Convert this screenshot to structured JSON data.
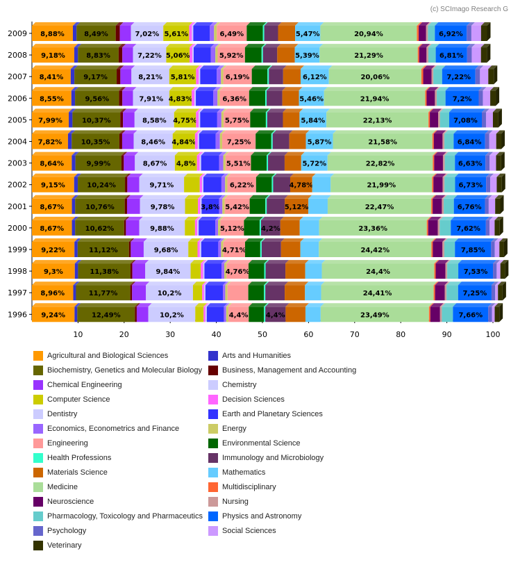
{
  "credit": "(c) SCImago Research G",
  "colors": {
    "Agricultural and Biological Sciences": "#ff9900",
    "Arts and Humanities": "#3333cc",
    "Biochemistry, Genetics and Molecular Biology": "#666600",
    "Business, Management and Accounting": "#660000",
    "Chemical Engineering": "#9933ff",
    "Chemistry": "#ccccff",
    "Computer Science": "#cccc00",
    "Decision Sciences": "#ff66ff",
    "Dentistry": "#ccccff",
    "Earth and Planetary Sciences": "#3333ff",
    "Economics, Econometrics and Finance": "#9966ff",
    "Energy": "#cccc66",
    "Engineering": "#ff9999",
    "Environmental Science": "#006600",
    "Health Professions": "#33ffcc",
    "Immunology and Microbiology": "#663366",
    "Materials Science": "#cc6600",
    "Mathematics": "#66ccff",
    "Medicine": "#aadd99",
    "Multidisciplinary": "#ff6633",
    "Neuroscience": "#660066",
    "Nursing": "#cc9999",
    "Pharmacology, Toxicology and Pharmaceutics": "#66cccc",
    "Physics and Astronomy": "#0066ff",
    "Psychology": "#6666cc",
    "Social Sciences": "#cc99ff",
    "Veterinary": "#333300"
  },
  "legend": [
    "Agricultural and Biological Sciences",
    "Arts and Humanities",
    "Biochemistry, Genetics and Molecular Biology",
    "Business, Management and Accounting",
    "Chemical Engineering",
    "Chemistry",
    "Computer Science",
    "Decision Sciences",
    "Dentistry",
    "Earth and Planetary Sciences",
    "Economics, Econometrics and Finance",
    "Energy",
    "Engineering",
    "Environmental Science",
    "Health Professions",
    "Immunology and Microbiology",
    "Materials Science",
    "Mathematics",
    "Medicine",
    "Multidisciplinary",
    "Neuroscience",
    "Nursing",
    "Pharmacology, Toxicology and Pharmaceutics",
    "Physics and Astronomy",
    "Psychology",
    "Social Sciences",
    "Veterinary"
  ],
  "chart_data": {
    "type": "bar",
    "orientation": "horizontal",
    "stacked": true,
    "xlim": [
      0,
      100
    ],
    "xticks": [
      10,
      20,
      30,
      40,
      50,
      60,
      70,
      80,
      90,
      100
    ],
    "grid": false,
    "legend_position": "bottom",
    "categories": [
      "2009",
      "2008",
      "2007",
      "2006",
      "2005",
      "2004",
      "2003",
      "2002",
      "2001",
      "2000",
      "1999",
      "1998",
      "1997",
      "1996"
    ],
    "series": [
      {
        "name": "Agricultural and Biological Sciences",
        "values": [
          8.88,
          9.18,
          8.41,
          8.55,
          7.99,
          7.82,
          8.64,
          9.15,
          8.67,
          8.67,
          9.22,
          9.3,
          8.96,
          9.24
        ],
        "labels": [
          "8,88%",
          "9,18%",
          "8,41%",
          "8,55%",
          "7,99%",
          "7,82%",
          "8,64%",
          "9,15%",
          "8,67%",
          "8,67%",
          "9,22%",
          "9,3%",
          "8,96%",
          "9,24%"
        ]
      },
      {
        "name": "Arts and Humanities",
        "values": [
          0.8,
          0.8,
          0.8,
          0.8,
          0.8,
          0.8,
          0.8,
          0.8,
          0.7,
          0.7,
          0.7,
          0.7,
          0.6,
          0.6
        ]
      },
      {
        "name": "Biochemistry, Genetics and Molecular Biology",
        "values": [
          8.49,
          8.83,
          9.17,
          9.56,
          10.37,
          10.35,
          9.99,
          10.24,
          10.76,
          10.62,
          11.12,
          11.38,
          11.77,
          12.49
        ],
        "labels": [
          "8,49%",
          "8,83%",
          "9,17%",
          "9,56%",
          "10,37%",
          "10,35%",
          "9,99%",
          "10,24%",
          "10,76%",
          "10,62%",
          "11,12%",
          "11,38%",
          "11,77%",
          "12,49%"
        ]
      },
      {
        "name": "Business, Management and Accounting",
        "values": [
          0.9,
          0.8,
          0.8,
          0.7,
          0.6,
          0.6,
          0.5,
          0.5,
          0.5,
          0.4,
          0.4,
          0.4,
          0.4,
          0.4
        ]
      },
      {
        "name": "Chemical Engineering",
        "values": [
          2.4,
          2.3,
          2.4,
          2.3,
          2.5,
          2.5,
          2.4,
          2.6,
          2.8,
          2.9,
          2.8,
          2.8,
          3.0,
          2.5
        ]
      },
      {
        "name": "Chemistry",
        "values": [
          7.02,
          7.22,
          8.21,
          7.91,
          8.58,
          8.46,
          8.67,
          9.71,
          9.78,
          9.88,
          9.68,
          9.84,
          10.2,
          10.2
        ],
        "labels": [
          "7,02%",
          "7,22%",
          "8,21%",
          "7,91%",
          "8,58%",
          "8,46%",
          "8,67%",
          "9,71%",
          "9,78%",
          "9,88%",
          "9,68%",
          "9,84%",
          "10,2%",
          "10,2%"
        ]
      },
      {
        "name": "Computer Science",
        "values": [
          5.61,
          5.06,
          5.81,
          4.83,
          4.75,
          4.84,
          4.8,
          3.4,
          2.8,
          2.2,
          2.0,
          2.2,
          2.0,
          1.8
        ],
        "labels": [
          "5,61%",
          "5,06%",
          "5,81%",
          "4,83%",
          "4,75%",
          "4,84%",
          "4,8%",
          "",
          "",
          "",
          "",
          "",
          "",
          ""
        ]
      },
      {
        "name": "Decision Sciences",
        "values": [
          0.6,
          0.6,
          0.6,
          0.6,
          0.6,
          0.6,
          0.6,
          0.5,
          0.5,
          0.5,
          0.5,
          0.5,
          0.4,
          0.4
        ]
      },
      {
        "name": "Dentistry",
        "values": [
          0.3,
          0.3,
          0.3,
          0.3,
          0.3,
          0.3,
          0.3,
          0.3,
          0.3,
          0.3,
          0.3,
          0.3,
          0.3,
          0.3
        ]
      },
      {
        "name": "Earth and Planetary Sciences",
        "values": [
          3.6,
          3.7,
          3.6,
          3.8,
          3.7,
          3.6,
          3.9,
          3.9,
          3.8,
          3.6,
          3.7,
          3.7,
          3.8,
          3.7
        ],
        "labels": [
          "",
          "",
          "",
          "",
          "",
          "",
          "",
          "",
          "3,8%",
          "",
          "",
          "",
          "",
          ""
        ]
      },
      {
        "name": "Economics, Econometrics and Finance",
        "values": [
          0.9,
          1.0,
          0.9,
          0.9,
          0.9,
          0.9,
          0.9,
          0.8,
          0.7,
          0.6,
          0.6,
          0.6,
          0.5,
          0.5
        ]
      },
      {
        "name": "Energy",
        "values": [
          0.6,
          0.5,
          0.5,
          0.5,
          0.5,
          0.5,
          0.5,
          0.5,
          0.5,
          0.5,
          0.5,
          0.5,
          0.5,
          0.5
        ]
      },
      {
        "name": "Engineering",
        "values": [
          6.49,
          5.92,
          6.19,
          6.36,
          5.75,
          7.25,
          5.51,
          6.22,
          5.42,
          5.12,
          4.71,
          4.76,
          4.5,
          4.4
        ],
        "labels": [
          "6,49%",
          "5,92%",
          "6,19%",
          "6,36%",
          "5,75%",
          "7,25%",
          "5,51%",
          "6,22%",
          "5,42%",
          "5,12%",
          "4,71%",
          "4,76%",
          "",
          "4,4%"
        ]
      },
      {
        "name": "Environmental Science",
        "values": [
          3.5,
          3.6,
          3.4,
          3.5,
          3.4,
          3.4,
          3.4,
          3.4,
          3.4,
          3.4,
          3.3,
          3.4,
          3.4,
          3.3
        ]
      },
      {
        "name": "Health Professions",
        "values": [
          0.3,
          0.3,
          0.3,
          0.3,
          0.3,
          0.3,
          0.3,
          0.3,
          0.3,
          0.3,
          0.3,
          0.3,
          0.3,
          0.3
        ]
      },
      {
        "name": "Immunology and Microbiology",
        "values": [
          3.0,
          3.1,
          3.1,
          3.4,
          3.4,
          3.6,
          3.6,
          3.7,
          3.9,
          4.2,
          4.2,
          4.3,
          4.2,
          4.4
        ],
        "labels": [
          "",
          "",
          "",
          "",
          "",
          "",
          "",
          "",
          "",
          "4,2%",
          "",
          "",
          "",
          "4,4%"
        ]
      },
      {
        "name": "Materials Science",
        "values": [
          3.7,
          3.8,
          3.8,
          3.6,
          3.6,
          3.6,
          3.6,
          4.78,
          5.12,
          4.2,
          4.2,
          4.3,
          4.4,
          4.3
        ],
        "labels": [
          "",
          "",
          "",
          "",
          "",
          "",
          "",
          "4,78%",
          "5,12%",
          "",
          "",
          "",
          "",
          ""
        ]
      },
      {
        "name": "Mathematics",
        "values": [
          5.47,
          5.39,
          6.12,
          5.46,
          5.84,
          5.87,
          5.72,
          4.0,
          4.2,
          4.2,
          4.0,
          3.6,
          3.5,
          3.3
        ],
        "labels": [
          "5,47%",
          "5,39%",
          "6,12%",
          "5,46%",
          "5,84%",
          "5,87%",
          "5,72%",
          "",
          "",
          "",
          "",
          "",
          "",
          ""
        ]
      },
      {
        "name": "Medicine",
        "values": [
          20.94,
          21.29,
          20.06,
          21.94,
          22.13,
          21.58,
          22.82,
          21.99,
          22.47,
          23.36,
          24.42,
          24.4,
          24.41,
          23.49
        ],
        "labels": [
          "20,94%",
          "21,29%",
          "20,06%",
          "21,94%",
          "22,13%",
          "21,58%",
          "22,82%",
          "21,99%",
          "22,47%",
          "23,36%",
          "24,42%",
          "24,4%",
          "24,41%",
          "23,49%"
        ]
      },
      {
        "name": "Multidisciplinary",
        "values": [
          0.4,
          0.3,
          0.4,
          0.3,
          0.3,
          0.3,
          0.3,
          0.3,
          0.3,
          0.3,
          0.3,
          0.3,
          0.3,
          0.3
        ]
      },
      {
        "name": "Neuroscience",
        "values": [
          1.6,
          1.6,
          1.8,
          1.8,
          1.8,
          1.9,
          1.9,
          2.0,
          2.0,
          2.1,
          2.1,
          2.1,
          2.1,
          2.1
        ]
      },
      {
        "name": "Nursing",
        "values": [
          0.4,
          0.4,
          0.4,
          0.4,
          0.4,
          0.4,
          0.4,
          0.4,
          0.4,
          0.4,
          0.4,
          0.4,
          0.4,
          0.4
        ]
      },
      {
        "name": "Pharmacology, Toxicology and Pharmaceutics",
        "values": [
          1.5,
          1.6,
          1.9,
          1.9,
          2.0,
          2.0,
          2.2,
          2.3,
          2.2,
          2.4,
          2.3,
          2.4,
          2.5,
          2.4
        ]
      },
      {
        "name": "Physics and Astronomy",
        "values": [
          6.92,
          6.81,
          7.22,
          7.2,
          7.08,
          6.84,
          6.63,
          6.73,
          6.76,
          7.62,
          7.85,
          7.53,
          7.25,
          7.66
        ],
        "labels": [
          "6,92%",
          "6,81%",
          "7,22%",
          "7,2%",
          "7,08%",
          "6,84%",
          "6,63%",
          "6,73%",
          "6,76%",
          "7,62%",
          "7,85%",
          "7,53%",
          "7,25%",
          "7,66%"
        ]
      },
      {
        "name": "Psychology",
        "values": [
          1.0,
          1.0,
          1.0,
          0.9,
          0.9,
          0.9,
          0.9,
          0.9,
          0.8,
          0.8,
          0.8,
          0.8,
          0.8,
          0.8
        ]
      },
      {
        "name": "Social Sciences",
        "values": [
          2.1,
          2.0,
          1.8,
          1.6,
          1.5,
          1.5,
          1.4,
          1.4,
          1.4,
          1.1,
          1.0,
          0.8,
          0.6,
          0.6
        ]
      },
      {
        "name": "Veterinary",
        "values": [
          1.3,
          1.3,
          1.2,
          1.2,
          1.2,
          1.1,
          1.1,
          1.1,
          1.1,
          1.1,
          1.0,
          1.0,
          1.0,
          1.0
        ]
      }
    ]
  }
}
